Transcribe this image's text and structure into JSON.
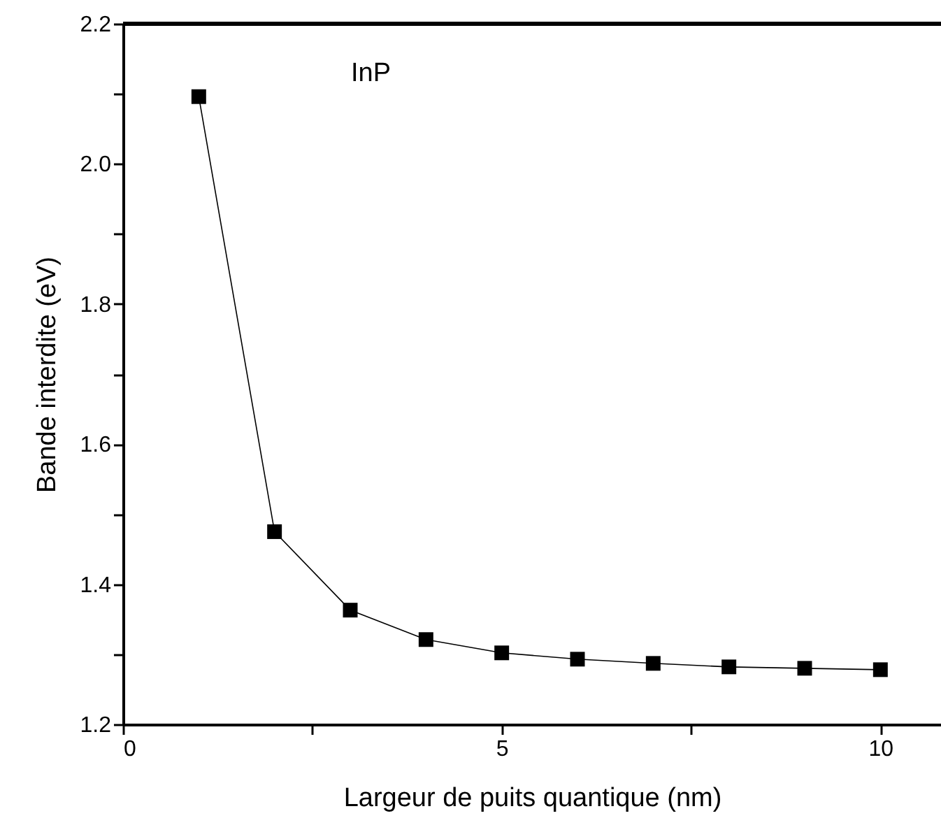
{
  "chart_data": {
    "type": "line",
    "xlabel": "Largeur de puits quantique (nm)",
    "ylabel": "Bande interdite (eV)",
    "annotations": [
      "InP"
    ],
    "x": [
      1,
      2,
      3,
      4,
      5,
      6,
      7,
      8,
      9,
      10
    ],
    "series": [
      {
        "color": "#000000",
        "values": [
          2.096,
          1.475,
          1.363,
          1.321,
          1.302,
          1.293,
          1.287,
          1.282,
          1.28,
          1.278
        ]
      }
    ],
    "xlim": [
      0,
      10.8
    ],
    "xticks": [
      0,
      {
        "value": 2.5,
        "label": null
      },
      5,
      {
        "value": 7.5,
        "label": null
      },
      10
    ],
    "ylim": [
      1.2,
      2.2
    ],
    "yticks": [
      "1.2",
      {
        "value": 1.3,
        "label": null
      },
      {
        "value": 1.4,
        "label": "1.4"
      },
      {
        "value": 1.5,
        "label": null
      },
      {
        "value": 1.6,
        "label": "1.6"
      },
      {
        "value": 1.7,
        "label": null
      },
      {
        "value": 1.8,
        "label": "1.8"
      },
      {
        "value": 1.9,
        "label": null
      },
      {
        "value": 2.0,
        "label": "2.0"
      },
      {
        "value": 2.1,
        "label": null
      },
      {
        "value": 2.2,
        "label": "2.2"
      }
    ],
    "grid": false,
    "marker": "square",
    "line_style": "solid"
  }
}
